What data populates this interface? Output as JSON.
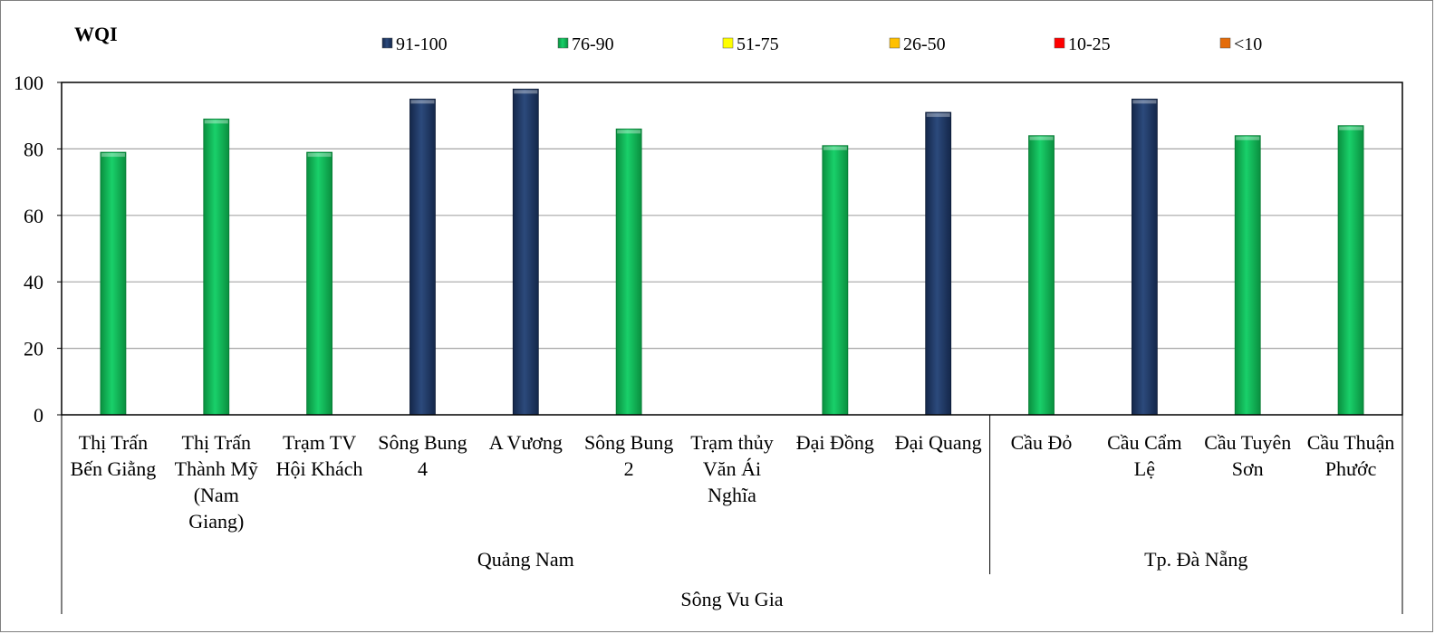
{
  "chart_data": {
    "type": "bar",
    "ylabel": "WQI",
    "ylim": [
      0,
      100
    ],
    "yticks": [
      0,
      20,
      40,
      60,
      80,
      100
    ],
    "gridlines": true,
    "legend_position": "top",
    "legend": [
      {
        "label": "91-100",
        "color": "#1f3864"
      },
      {
        "label": "76-90",
        "color": "#00b050"
      },
      {
        "label": "51-75",
        "color": "#ffff00"
      },
      {
        "label": "26-50",
        "color": "#ffc000"
      },
      {
        "label": "10-25",
        "color": "#ff0000"
      },
      {
        "label": "<10",
        "color": "#e46c0a"
      }
    ],
    "categories": [
      [
        "Thị Trấn",
        "Bến Giằng"
      ],
      [
        "Thị Trấn",
        "Thành Mỹ",
        "(Nam",
        "Giang)"
      ],
      [
        "Trạm TV",
        "Hội Khách"
      ],
      [
        "Sông Bung",
        "4"
      ],
      [
        "A Vương"
      ],
      [
        "Sông Bung",
        "2"
      ],
      [
        "Trạm thủy",
        "Văn Ái",
        "Nghĩa"
      ],
      [
        "Đại Đồng"
      ],
      [
        "Đại Quang"
      ],
      [
        "Cầu Đỏ"
      ],
      [
        "Cầu Cẩm",
        "Lệ"
      ],
      [
        "Cầu Tuyên",
        "Sơn"
      ],
      [
        "Cầu Thuận",
        "Phước"
      ]
    ],
    "values": [
      79,
      89,
      79,
      95,
      98,
      86,
      null,
      81,
      91,
      84,
      95,
      84,
      87
    ],
    "groups": [
      {
        "label": "Quảng Nam",
        "start": 0,
        "end": 8
      },
      {
        "label": "Tp. Đà Nẵng",
        "start": 9,
        "end": 12
      }
    ],
    "supergroup": "Sông Vu Gia"
  }
}
